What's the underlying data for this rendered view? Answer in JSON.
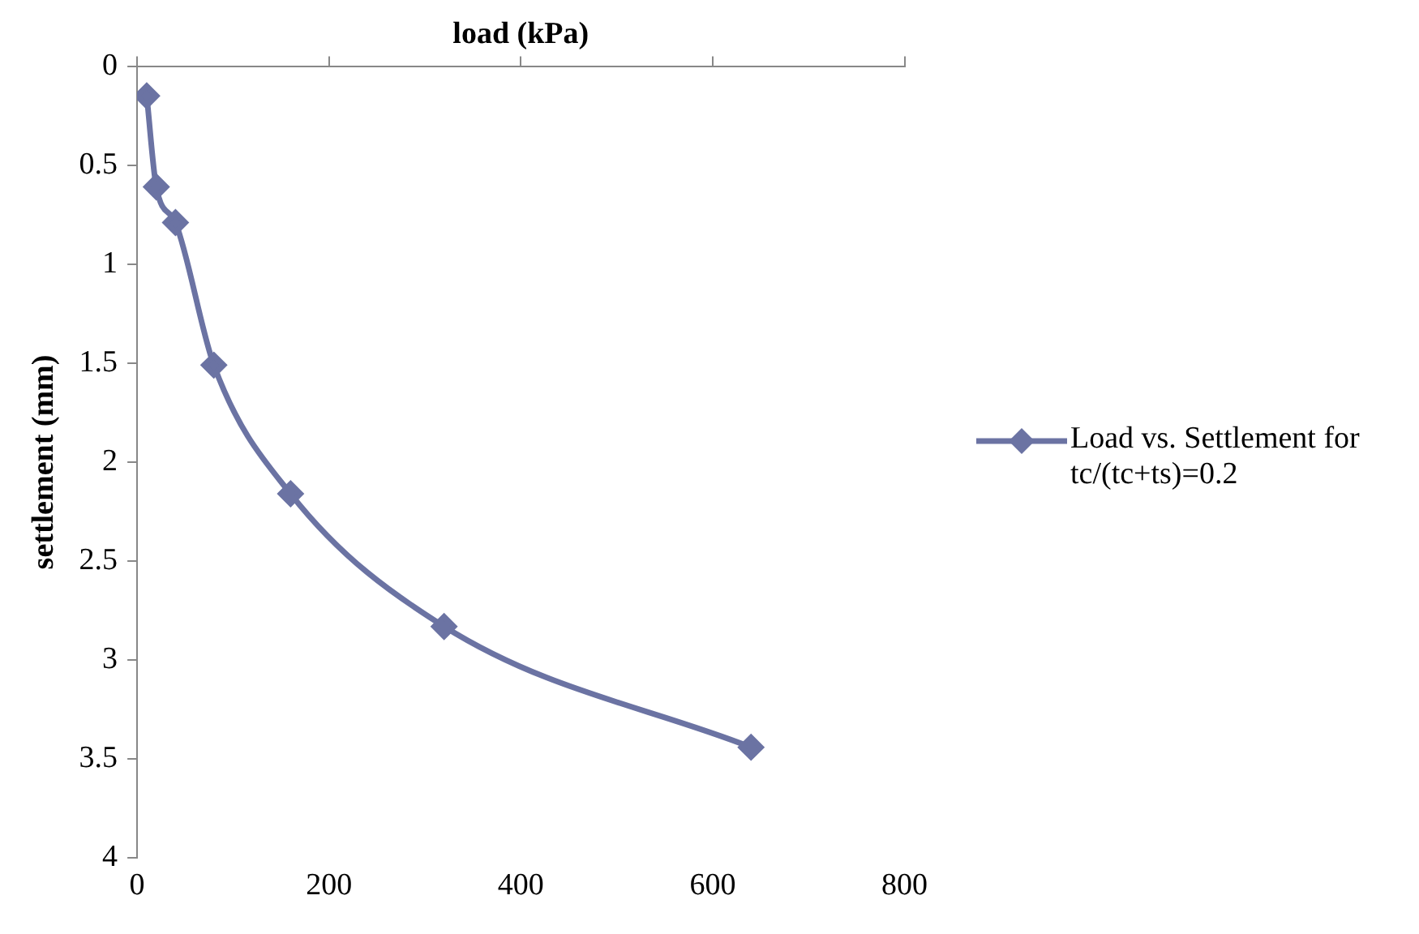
{
  "chart_data": {
    "type": "line",
    "xlabel": "load (kPa)",
    "ylabel": "settlement (mm)",
    "xlim": [
      0,
      800
    ],
    "xticks": [
      0,
      200,
      400,
      600,
      800
    ],
    "ylim": [
      4,
      0
    ],
    "yticks": [
      0,
      0.5,
      1,
      1.5,
      2,
      2.5,
      3,
      3.5,
      4
    ],
    "grid": false,
    "legend": "right",
    "marker": "diamond",
    "line_style": "solid",
    "series": [
      {
        "name": "Load vs. Settlement for tc/(tc+ts)=0.2",
        "color": "#6b73a3",
        "x": [
          10,
          20,
          40,
          80,
          160,
          320,
          640
        ],
        "values": [
          0.15,
          0.61,
          0.79,
          1.51,
          2.16,
          2.83,
          3.44
        ]
      }
    ]
  }
}
